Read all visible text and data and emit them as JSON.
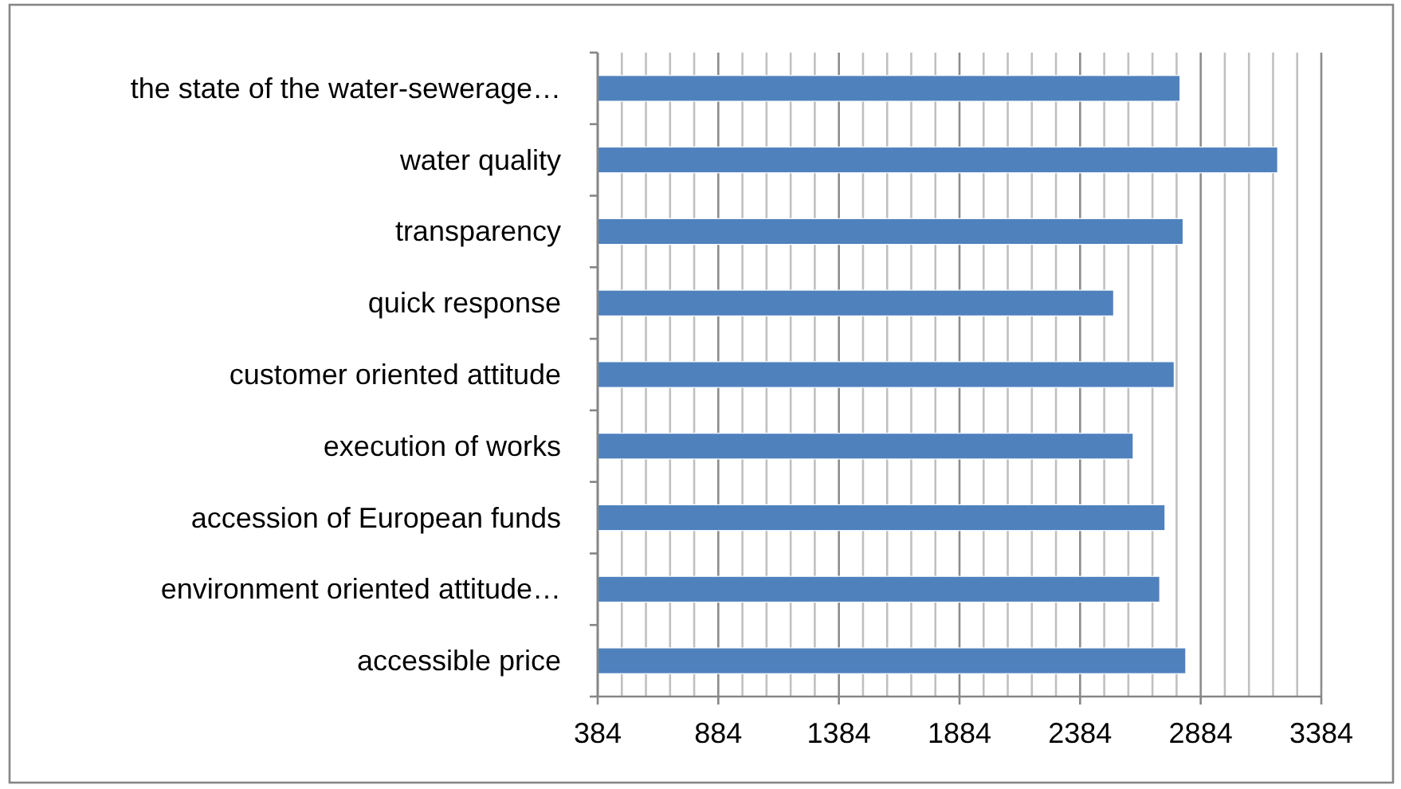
{
  "chart_data": {
    "type": "bar",
    "orientation": "horizontal",
    "categories": [
      "the state of the water-sewerage…",
      "water quality",
      "transparency",
      "quick response",
      "customer oriented attitude",
      "execution of works",
      "accession of European funds",
      "environment oriented attitude…",
      "accessible price"
    ],
    "values": [
      2798,
      3203,
      2811,
      2523,
      2774,
      2604,
      2736,
      2714,
      2822
    ],
    "color": "#4f81bd",
    "xlim": [
      384,
      3384
    ],
    "xticks": [
      384,
      {
        "value": 484,
        "label": null
      },
      {
        "value": 584,
        "label": null
      },
      {
        "value": 684,
        "label": null
      },
      {
        "value": 784,
        "label": null
      },
      884,
      {
        "value": 984,
        "label": null
      },
      {
        "value": 1084,
        "label": null
      },
      {
        "value": 1184,
        "label": null
      },
      {
        "value": 1284,
        "label": null
      },
      1384,
      {
        "value": 1484,
        "label": null
      },
      {
        "value": 1584,
        "label": null
      },
      {
        "value": 1684,
        "label": null
      },
      {
        "value": 1784,
        "label": null
      },
      1884,
      {
        "value": 1984,
        "label": null
      },
      {
        "value": 2084,
        "label": null
      },
      {
        "value": 2184,
        "label": null
      },
      {
        "value": 2284,
        "label": null
      },
      2384,
      {
        "value": 2484,
        "label": null
      },
      {
        "value": 2584,
        "label": null
      },
      {
        "value": 2684,
        "label": null
      },
      {
        "value": 2784,
        "label": null
      },
      2884,
      {
        "value": 2984,
        "label": null
      },
      {
        "value": 3084,
        "label": null
      },
      {
        "value": 3184,
        "label": null
      },
      {
        "value": 3284,
        "label": null
      },
      3384
    ],
    "grid": "x"
  }
}
